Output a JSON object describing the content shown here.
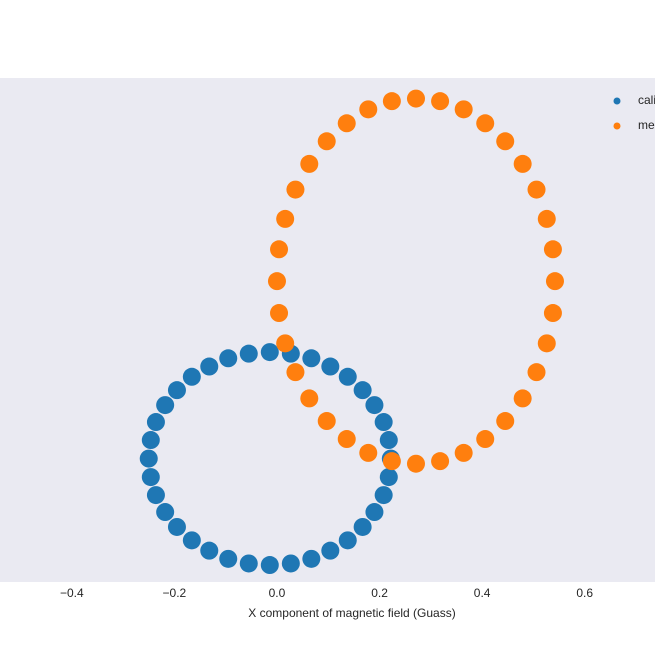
{
  "chart_data": {
    "type": "scatter",
    "xlabel": "X component of magnetic field (Guass)",
    "xlim": [
      -0.54,
      0.737
    ],
    "ylim": [
      -0.24,
      0.74
    ],
    "xticks": [
      {
        "value": -0.4,
        "label": "−0.4"
      },
      {
        "value": -0.2,
        "label": "−0.2"
      },
      {
        "value": 0,
        "label": "0.0"
      },
      0.2,
      0.4,
      0.6
    ],
    "grid": false,
    "legend": "upper right",
    "series": [
      {
        "name": "calibrated",
        "color": "#1f77b4",
        "x": [
          0.222,
          0.218,
          0.208,
          0.19,
          0.167,
          0.138,
          0.104,
          0.067,
          0.027,
          -0.014,
          -0.055,
          -0.095,
          -0.132,
          -0.166,
          -0.195,
          -0.218,
          -0.236,
          -0.246,
          -0.25,
          -0.246,
          -0.236,
          -0.218,
          -0.195,
          -0.166,
          -0.132,
          -0.095,
          -0.055,
          -0.014,
          0.027,
          0.067,
          0.104,
          0.138,
          0.167,
          0.19,
          0.208,
          0.218
        ],
        "y": [
          0,
          0.036,
          0.071,
          0.104,
          0.133,
          0.159,
          0.179,
          0.195,
          0.204,
          0.207,
          0.204,
          0.195,
          0.179,
          0.159,
          0.133,
          0.104,
          0.071,
          0.036,
          0,
          -0.036,
          -0.071,
          -0.104,
          -0.133,
          -0.159,
          -0.179,
          -0.195,
          -0.204,
          -0.207,
          -0.204,
          -0.195,
          -0.179,
          -0.159,
          -0.133,
          -0.104,
          -0.071,
          -0.036
        ]
      },
      {
        "name": "measured",
        "color": "#ff7f0e",
        "x": [
          0.542,
          0.538,
          0.526,
          0.506,
          0.479,
          0.445,
          0.406,
          0.364,
          0.318,
          0.271,
          0.224,
          0.178,
          0.136,
          0.097,
          0.063,
          0.036,
          0.016,
          0.004,
          0,
          0.004,
          0.016,
          0.036,
          0.063,
          0.097,
          0.136,
          0.178,
          0.224,
          0.271,
          0.318,
          0.364,
          0.406,
          0.445,
          0.479,
          0.506,
          0.526,
          0.538
        ],
        "y": [
          0.345,
          0.407,
          0.466,
          0.523,
          0.573,
          0.617,
          0.652,
          0.679,
          0.695,
          0.7,
          0.695,
          0.679,
          0.652,
          0.617,
          0.573,
          0.523,
          0.466,
          0.407,
          0.345,
          0.283,
          0.224,
          0.168,
          0.117,
          0.073,
          0.038,
          0.011,
          -0.005,
          -0.01,
          -0.005,
          0.011,
          0.038,
          0.073,
          0.117,
          0.168,
          0.224,
          0.283
        ]
      }
    ]
  }
}
